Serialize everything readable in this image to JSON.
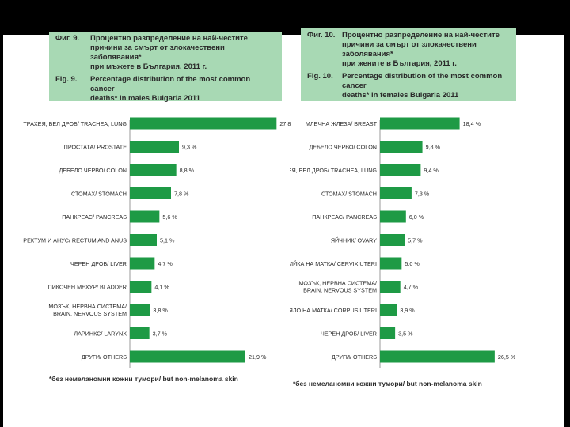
{
  "left_panel": {
    "fig_bg_label": "Фиг. 9.",
    "fig_bg_title_line1": "Процентно разпределение на най-честите",
    "fig_bg_title_line2": "причини за смърт от злокачествени заболявания*",
    "fig_bg_title_line3": "при мъжете в България, 2011 г.",
    "fig_en_label": "Fig. 9.",
    "fig_en_title_line1": "Percentage distribution of the most common cancer",
    "fig_en_title_line2": "deaths* in males Bulgaria 2011",
    "footnote": "*без немеланомни кожни тумори/ but non-melanoma skin"
  },
  "right_panel": {
    "fig_bg_label": "Фиг. 10.",
    "fig_bg_title_line1": "Процентно разпределение на най-честите",
    "fig_bg_title_line2": "причини за смърт от злокачествени заболявания*",
    "fig_bg_title_line3": "при жените в България, 2011 г.",
    "fig_en_label": "Fig. 10.",
    "fig_en_title_line1": "Percentage distribution of the most common cancer",
    "fig_en_title_line2": "deaths* in females Bulgaria 2011",
    "footnote": "*без немеланомни кожни тумори/ but non-melanoma skin"
  },
  "colors": {
    "bar": "#1e9a45",
    "header_bg": "#a8d9b4",
    "text": "#2a2a2a"
  },
  "chart_data": [
    {
      "type": "bar",
      "orientation": "horizontal",
      "title": "Percentage distribution of the most common cancer deaths* in males Bulgaria 2011",
      "categories": [
        "ТРАХЕЯ, БЕЛ ДРОБ/ TRACHEA, LUNG",
        "ПРОСТАТА/ PROSTATE",
        "ДЕБЕЛО ЧЕРВО/ COLON",
        "СТОМАХ/ STOMACH",
        "ПАНКРЕАС/ PANCREAS",
        "РЕКТУМ И АНУС/ RECTUM AND ANUS",
        "ЧЕРЕН ДРОБ/ LIVER",
        "ПИКОЧЕН МЕХУР/ BLADDER",
        "МОЗЪК, НЕРВНА СИСТЕМА/ BRAIN, NERVOUS SYSTEM",
        "ЛАРИНКС/ LARYNX",
        "ДРУГИ/ OTHERS"
      ],
      "values": [
        27.8,
        9.3,
        8.8,
        7.8,
        5.6,
        5.1,
        4.7,
        4.1,
        3.8,
        3.7,
        21.9
      ],
      "value_labels": [
        "27,8%",
        "9,3 %",
        "8,8 %",
        "7,8 %",
        "5,6 %",
        "5,1 %",
        "4,7 %",
        "4,1 %",
        "3,8 %",
        "3,7 %",
        "21,9 %"
      ],
      "xlim": [
        0,
        30
      ],
      "unit": "%"
    },
    {
      "type": "bar",
      "orientation": "horizontal",
      "title": "Percentage distribution of the most common cancer deaths* in females Bulgaria 2011",
      "categories": [
        "МЛЕЧНА ЖЛЕЗА/ BREAST",
        "ДЕБЕЛО ЧЕРВО/ COLON",
        "ТРАХЕЯ, БЕЛ ДРОБ/ TRACHEA, LUNG",
        "СТОМАХ/ STOMACH",
        "ПАНКРЕАС/ PANCREAS",
        "ЯЙЧНИК/ OVARY",
        "ШИЙКА НА МАТКА/ CERVIX UTERI",
        "МОЗЪК, НЕРВНА СИСТЕМА/ BRAIN, NERVOUS SYSTEM",
        "ТЯЛО НА МАТКА/ CORPUS UTERI",
        "ЧЕРЕН ДРОБ/ LIVER",
        "ДРУГИ/ OTHERS"
      ],
      "values": [
        18.4,
        9.8,
        9.4,
        7.3,
        6.0,
        5.7,
        5.0,
        4.7,
        3.9,
        3.5,
        26.5
      ],
      "value_labels": [
        "18,4 %",
        "9,8 %",
        "9,4 %",
        "7,3 %",
        "6,0 %",
        "5,7 %",
        "5,0 %",
        "4,7 %",
        "3,9 %",
        "3,5 %",
        "26,5 %"
      ],
      "xlim": [
        0,
        30
      ],
      "unit": "%"
    }
  ]
}
